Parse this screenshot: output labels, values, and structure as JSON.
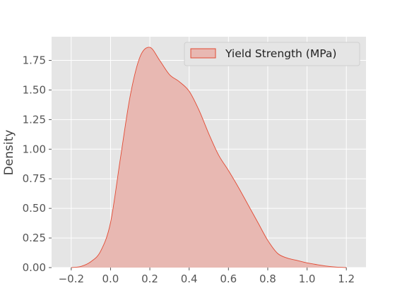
{
  "chart_data": {
    "type": "area",
    "title": "",
    "xlabel": "",
    "ylabel": "Density",
    "xlim": [
      -0.3,
      1.3
    ],
    "ylim": [
      0,
      1.95
    ],
    "x_ticks": [
      -0.2,
      0.0,
      0.2,
      0.4,
      0.6,
      0.8,
      1.0,
      1.2
    ],
    "x_tick_labels": [
      "−0.2",
      "0.0",
      "0.2",
      "0.4",
      "0.6",
      "0.8",
      "1.0",
      "1.2"
    ],
    "y_ticks": [
      0.0,
      0.25,
      0.5,
      0.75,
      1.0,
      1.25,
      1.5,
      1.75
    ],
    "y_tick_labels": [
      "0.00",
      "0.25",
      "0.50",
      "0.75",
      "1.00",
      "1.25",
      "1.50",
      "1.75"
    ],
    "grid": true,
    "legend_position": "top-right",
    "series": [
      {
        "name": "Yield Strength (MPa)",
        "color": "#e24a33",
        "fill_color": "#e8b8b2",
        "x": [
          -0.2,
          -0.15,
          -0.1,
          -0.05,
          0.0,
          0.05,
          0.1,
          0.15,
          0.2,
          0.25,
          0.3,
          0.35,
          0.4,
          0.45,
          0.5,
          0.55,
          0.6,
          0.65,
          0.7,
          0.75,
          0.8,
          0.85,
          0.9,
          0.95,
          1.0,
          1.05,
          1.1,
          1.15,
          1.2
        ],
        "y": [
          0.0,
          0.01,
          0.05,
          0.14,
          0.38,
          0.92,
          1.45,
          1.78,
          1.86,
          1.75,
          1.63,
          1.57,
          1.49,
          1.33,
          1.13,
          0.95,
          0.82,
          0.68,
          0.53,
          0.38,
          0.23,
          0.12,
          0.08,
          0.06,
          0.04,
          0.025,
          0.012,
          0.004,
          0.0
        ]
      }
    ]
  }
}
